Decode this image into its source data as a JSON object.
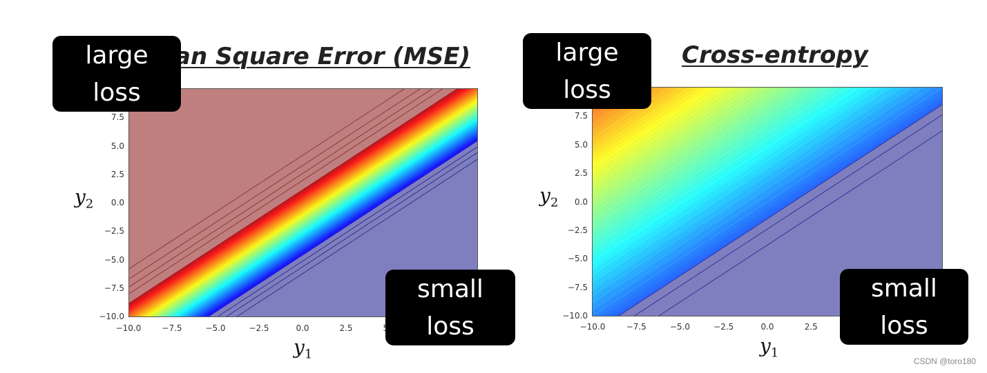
{
  "chart_data": [
    {
      "type": "heatmap",
      "title": "Mean Square Error (MSE)",
      "title_visible": "ean Square Error (MSE)",
      "xlabel": "y",
      "xlabel_sub": "1",
      "ylabel": "y",
      "ylabel_sub": "2",
      "xlim": [
        -10,
        10
      ],
      "ylim": [
        -10,
        10
      ],
      "x_ticks": [
        "-10.0",
        "-7.5",
        "-5.0",
        "-2.5",
        "0.0",
        "2.5",
        "5.0"
      ],
      "y_ticks": [
        "7.5",
        "5.0",
        "2.5",
        "0.0",
        "-2.5",
        "-5.0",
        "-7.5",
        "-10.0"
      ],
      "colormap": "jet",
      "surface": "loss contours along the diagonal band y2 = y1 - 2, high loss (red) above, low loss (blue) below",
      "band_offset": -2,
      "low_color": "#7f7fbf",
      "high_color": "#bf7f7f",
      "annotations": [
        {
          "lines": [
            "large",
            "loss"
          ],
          "where": "top-left"
        },
        {
          "lines": [
            "small",
            "loss"
          ],
          "where": "bottom-right"
        }
      ]
    },
    {
      "type": "heatmap",
      "title": "Cross-entropy",
      "xlabel": "y",
      "xlabel_sub": "1",
      "ylabel": "y",
      "ylabel_sub": "2",
      "xlim": [
        -10,
        10
      ],
      "ylim": [
        -10,
        10
      ],
      "x_ticks": [
        "-10.0",
        "-7.5",
        "-5.0",
        "-2.5",
        "0.0",
        "2.5"
      ],
      "y_ticks": [
        "7.5",
        "5.0",
        "2.5",
        "0.0",
        "-2.5",
        "-5.0",
        "-7.5",
        "-10.0"
      ],
      "colormap": "jet",
      "surface": "loss increasing smoothly toward the top-left, low loss (blue) toward the bottom-right",
      "low_color": "#7f7fbf",
      "annotations": [
        {
          "lines": [
            "large",
            "loss"
          ],
          "where": "top-left"
        },
        {
          "lines": [
            "small",
            "loss"
          ],
          "where": "bottom-right"
        }
      ]
    }
  ],
  "watermark": "CSDN @toro180"
}
